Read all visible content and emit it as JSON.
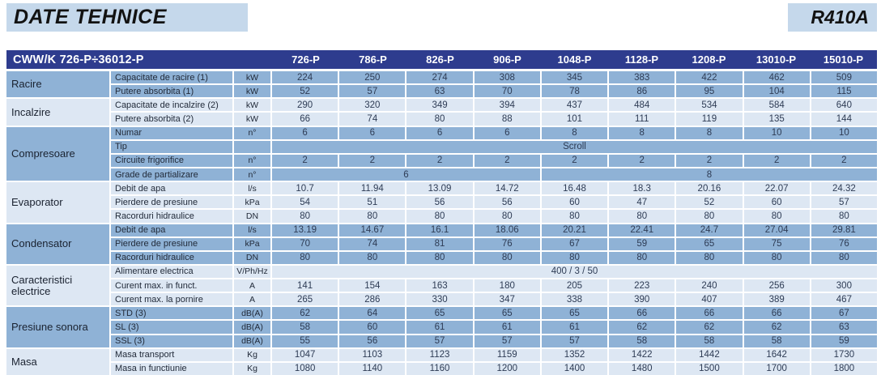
{
  "page": {
    "title": "DATE TEHNICE",
    "refrigerant_badge": "R410A"
  },
  "colors": {
    "header_navy": "#2e3c8e",
    "row_medium_blue": "#8fb2d6",
    "row_light_blue": "#dde7f3",
    "title_background": "#c5d8eb",
    "header_text": "#ffffff"
  },
  "table": {
    "series_label": "CWW/K 726-P÷36012-P",
    "columns": [
      "726-P",
      "786-P",
      "826-P",
      "906-P",
      "1048-P",
      "1128-P",
      "1208-P",
      "13010-P",
      "15010-P"
    ],
    "groups": [
      {
        "name": "Racire",
        "rows": [
          {
            "label": "Capacitate de racire (1)",
            "unit": "kW",
            "values": [
              "224",
              "250",
              "274",
              "308",
              "345",
              "383",
              "422",
              "462",
              "509"
            ]
          },
          {
            "label": "Putere absorbita (1)",
            "unit": "kW",
            "values": [
              "52",
              "57",
              "63",
              "70",
              "78",
              "86",
              "95",
              "104",
              "115"
            ]
          }
        ]
      },
      {
        "name": "Incalzire",
        "rows": [
          {
            "label": "Capacitate de incalzire (2)",
            "unit": "kW",
            "values": [
              "290",
              "320",
              "349",
              "394",
              "437",
              "484",
              "534",
              "584",
              "640"
            ]
          },
          {
            "label": "Putere absorbita (2)",
            "unit": "kW",
            "values": [
              "66",
              "74",
              "80",
              "88",
              "101",
              "111",
              "119",
              "135",
              "144"
            ]
          }
        ]
      },
      {
        "name": "Compresoare",
        "rows": [
          {
            "label": "Numar",
            "unit": "n°",
            "values": [
              "6",
              "6",
              "6",
              "6",
              "8",
              "8",
              "8",
              "10",
              "10"
            ]
          },
          {
            "label": "Tip",
            "unit": "",
            "spans": [
              {
                "text": "Scroll",
                "cols": 9
              }
            ]
          },
          {
            "label": "Circuite frigorifice",
            "unit": "n°",
            "values": [
              "2",
              "2",
              "2",
              "2",
              "2",
              "2",
              "2",
              "2",
              "2"
            ]
          },
          {
            "label": "Grade de partializare",
            "unit": "n°",
            "spans": [
              {
                "text": "6",
                "cols": 4
              },
              {
                "text": "8",
                "cols": 5
              }
            ]
          }
        ]
      },
      {
        "name": "Evaporator",
        "rows": [
          {
            "label": "Debit de apa",
            "unit": "l/s",
            "values": [
              "10.7",
              "11.94",
              "13.09",
              "14.72",
              "16.48",
              "18.3",
              "20.16",
              "22.07",
              "24.32"
            ]
          },
          {
            "label": "Pierdere de presiune",
            "unit": "kPa",
            "values": [
              "54",
              "51",
              "56",
              "56",
              "60",
              "47",
              "52",
              "60",
              "57"
            ]
          },
          {
            "label": "Racorduri hidraulice",
            "unit": "DN",
            "values": [
              "80",
              "80",
              "80",
              "80",
              "80",
              "80",
              "80",
              "80",
              "80"
            ]
          }
        ]
      },
      {
        "name": "Condensator",
        "rows": [
          {
            "label": "Debit de apa",
            "unit": "l/s",
            "values": [
              "13.19",
              "14.67",
              "16.1",
              "18.06",
              "20.21",
              "22.41",
              "24.7",
              "27.04",
              "29.81"
            ]
          },
          {
            "label": "Pierdere de presiune",
            "unit": "kPa",
            "values": [
              "70",
              "74",
              "81",
              "76",
              "67",
              "59",
              "65",
              "75",
              "76"
            ]
          },
          {
            "label": "Racorduri hidraulice",
            "unit": "DN",
            "values": [
              "80",
              "80",
              "80",
              "80",
              "80",
              "80",
              "80",
              "80",
              "80"
            ]
          }
        ]
      },
      {
        "name": "Caracteristici electrice",
        "rows": [
          {
            "label": "Alimentare electrica",
            "unit": "V/Ph/Hz",
            "spans": [
              {
                "text": "400 / 3 / 50",
                "cols": 9
              }
            ]
          },
          {
            "label": "Curent max. in funct.",
            "unit": "A",
            "values": [
              "141",
              "154",
              "163",
              "180",
              "205",
              "223",
              "240",
              "256",
              "300"
            ]
          },
          {
            "label": "Curent max. la pornire",
            "unit": "A",
            "values": [
              "265",
              "286",
              "330",
              "347",
              "338",
              "390",
              "407",
              "389",
              "467"
            ]
          }
        ]
      },
      {
        "name": "Presiune sonora",
        "rows": [
          {
            "label": "STD (3)",
            "unit": "dB(A)",
            "values": [
              "62",
              "64",
              "65",
              "65",
              "65",
              "66",
              "66",
              "66",
              "67"
            ]
          },
          {
            "label": "SL (3)",
            "unit": "dB(A)",
            "values": [
              "58",
              "60",
              "61",
              "61",
              "61",
              "62",
              "62",
              "62",
              "63"
            ]
          },
          {
            "label": "SSL (3)",
            "unit": "dB(A)",
            "values": [
              "55",
              "56",
              "57",
              "57",
              "57",
              "58",
              "58",
              "58",
              "59"
            ]
          }
        ]
      },
      {
        "name": "Masa",
        "rows": [
          {
            "label": "Masa transport",
            "unit": "Kg",
            "values": [
              "1047",
              "1103",
              "1123",
              "1159",
              "1352",
              "1422",
              "1442",
              "1642",
              "1730"
            ]
          },
          {
            "label": "Masa in functiunie",
            "unit": "Kg",
            "values": [
              "1080",
              "1140",
              "1160",
              "1200",
              "1400",
              "1480",
              "1500",
              "1700",
              "1800"
            ]
          }
        ]
      }
    ]
  }
}
